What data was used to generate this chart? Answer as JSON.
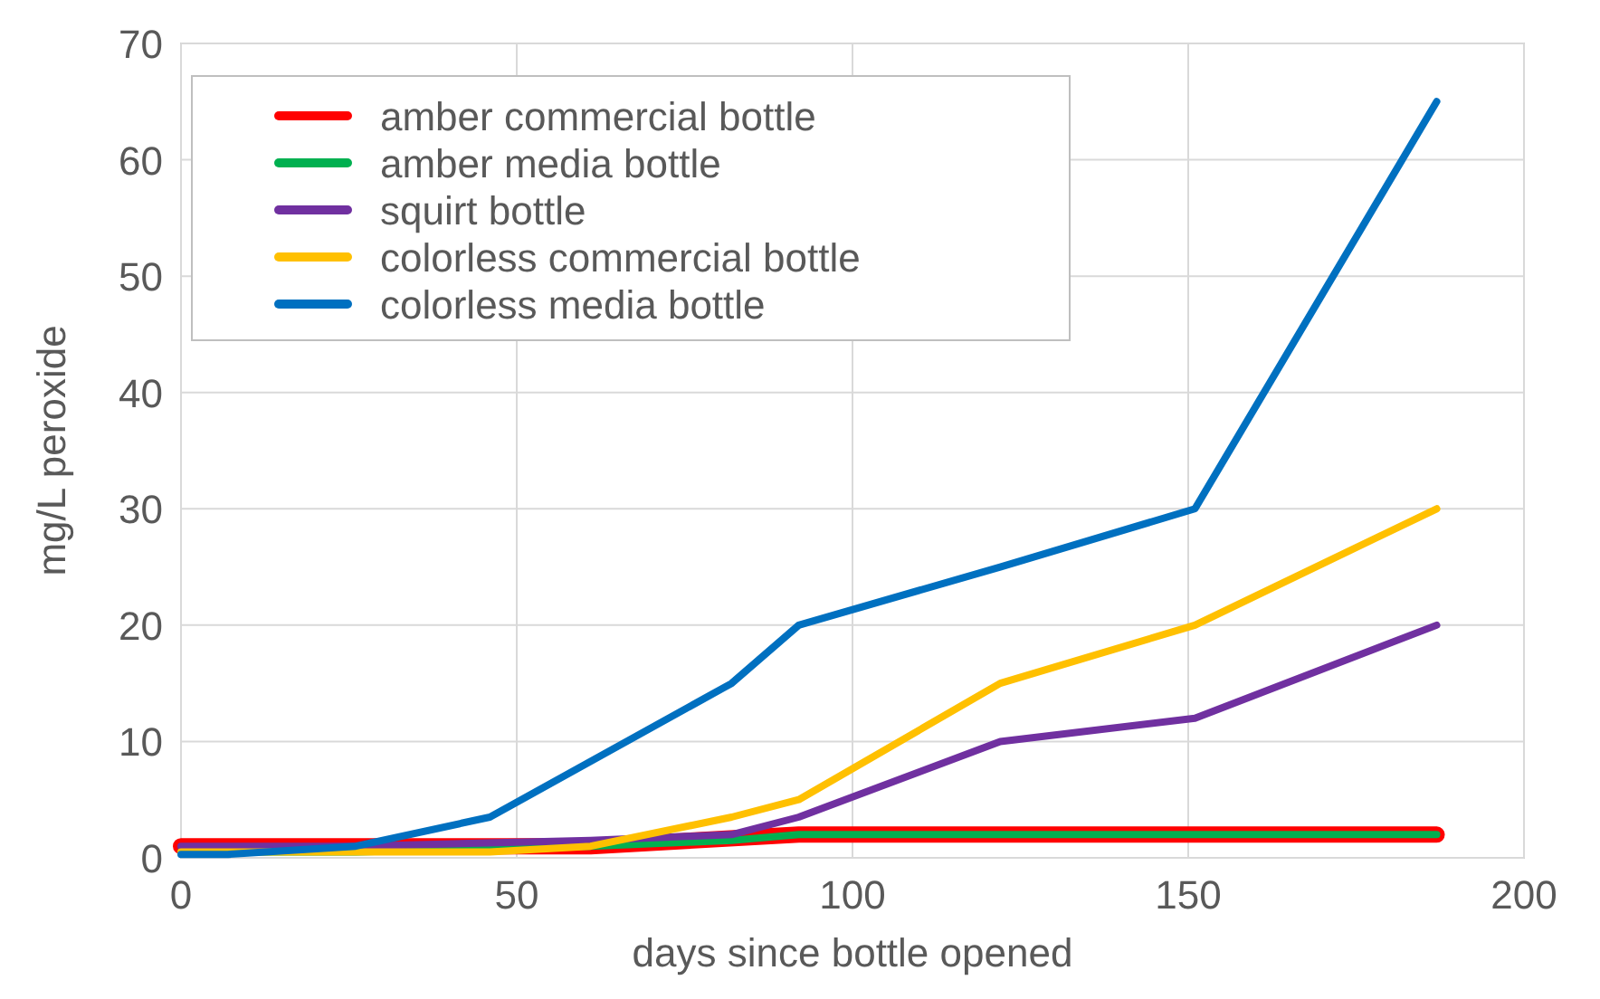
{
  "chart_data": {
    "type": "line",
    "xlabel": "days since bottle opened",
    "ylabel": "mg/L peroxide",
    "xlim": [
      0,
      200
    ],
    "xticks": [
      0,
      50,
      100,
      150,
      200
    ],
    "ylim": [
      0,
      70
    ],
    "yticks": [
      0,
      10,
      20,
      30,
      40,
      50,
      60,
      70
    ],
    "grid": true,
    "legend": "top left",
    "marker": "none",
    "line_style": "solid",
    "series": [
      {
        "name": "amber commercial bottle",
        "color": "#ff0000",
        "x": [
          0,
          26,
          61,
          92,
          122,
          151,
          187
        ],
        "values": [
          1,
          1,
          1,
          2,
          2,
          2,
          2
        ]
      },
      {
        "name": "amber media bottle",
        "color": "#00b050",
        "x": [
          0,
          26,
          61,
          82,
          92,
          122,
          151,
          187
        ],
        "values": [
          0.5,
          0.5,
          1,
          1.5,
          2,
          2,
          2,
          2
        ]
      },
      {
        "name": "squirt bottle",
        "color": "#7030a0",
        "x": [
          0,
          26,
          61,
          82,
          92,
          122,
          151,
          187
        ],
        "values": [
          1,
          1,
          1.5,
          2,
          3.5,
          10,
          12,
          20
        ]
      },
      {
        "name": "colorless commercial bottle",
        "color": "#ffc000",
        "x": [
          0,
          26,
          46,
          61,
          82,
          92,
          122,
          151,
          187
        ],
        "values": [
          0.5,
          0.5,
          0.5,
          1,
          3.5,
          5,
          15,
          20,
          30
        ]
      },
      {
        "name": "colorless media bottle",
        "color": "#0070c0",
        "x": [
          0,
          7,
          26,
          46,
          82,
          92,
          122,
          151,
          187
        ],
        "values": [
          0.3,
          0.3,
          1,
          3.5,
          15,
          20,
          25,
          30,
          65
        ]
      }
    ]
  }
}
